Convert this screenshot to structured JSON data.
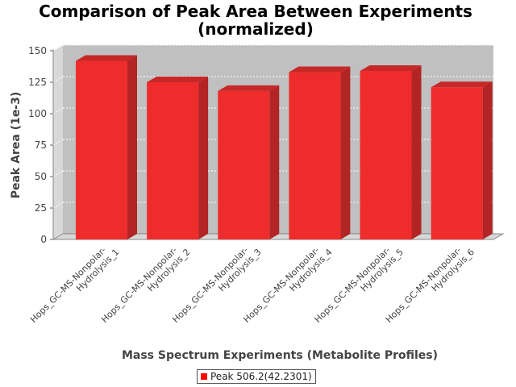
{
  "chart_data": {
    "type": "bar",
    "title_lines": [
      "Comparison of Peak Area Between Experiments",
      "(normalized)"
    ],
    "xlabel": "Mass Spectrum Experiments (Metabolite Profiles)",
    "ylabel": "Peak Area (1e-3)",
    "ylim": [
      0,
      150
    ],
    "yticks": [
      0,
      25,
      50,
      75,
      100,
      125,
      150
    ],
    "categories": [
      [
        "Hops_GC-MS-Nonpolar-",
        "Hydrolysis_1"
      ],
      [
        "Hops_GC-MS-Nonpolar-",
        "Hydrolysis_2"
      ],
      [
        "Hops_GC-MS-Nonpolar-",
        "Hydrolysis_3"
      ],
      [
        "Hops_GC-MS-Nonpolar-",
        "Hydrolysis_4"
      ],
      [
        "Hops_GC-MS-Nonpolar-",
        "Hydrolysis_5"
      ],
      [
        "Hops_GC-MS-Nonpolar-",
        "Hydrolysis_6"
      ]
    ],
    "series": [
      {
        "name": "Peak 506.2(42.2301)",
        "values": [
          142,
          125,
          118,
          133,
          134,
          121
        ],
        "color": "#ff0000"
      }
    ],
    "grid": true,
    "legend": "bottom-center",
    "colors": {
      "plot_background": "#c0c0c0",
      "bar_face": "#ee2c2c",
      "bar_side": "#b32424",
      "bar_top": "#c62828"
    }
  }
}
